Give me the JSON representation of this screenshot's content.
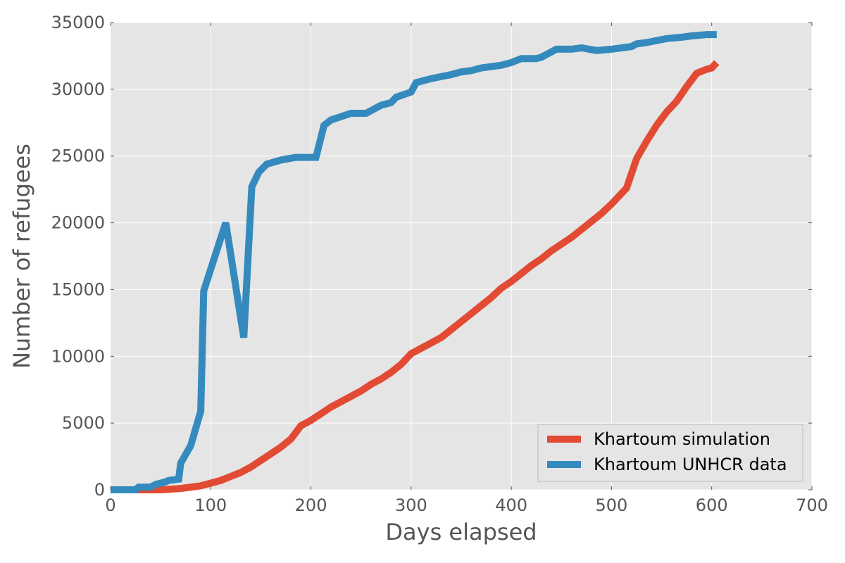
{
  "chart_data": {
    "type": "line",
    "title": "",
    "xlabel": "Days elapsed",
    "ylabel": "Number of refugees",
    "xlim": [
      0,
      700
    ],
    "ylim": [
      0,
      35000
    ],
    "xticks": [
      0,
      100,
      200,
      300,
      400,
      500,
      600,
      700
    ],
    "yticks": [
      0,
      5000,
      10000,
      15000,
      20000,
      25000,
      30000,
      35000
    ],
    "grid": true,
    "legend_position": "lower-right",
    "background_color": "#e5e5e5",
    "grid_color": "#ffffff",
    "series": [
      {
        "name": "Khartoum simulation",
        "color": "#e24a33",
        "x": [
          0,
          50,
          70,
          90,
          100,
          110,
          120,
          130,
          140,
          150,
          160,
          170,
          180,
          190,
          200,
          210,
          220,
          230,
          240,
          250,
          260,
          270,
          280,
          290,
          300,
          310,
          320,
          330,
          340,
          350,
          360,
          370,
          380,
          390,
          400,
          410,
          420,
          430,
          440,
          450,
          460,
          470,
          480,
          490,
          500,
          510,
          515,
          525,
          535,
          545,
          555,
          565,
          575,
          585,
          595,
          600,
          605
        ],
        "y": [
          0,
          0,
          100,
          300,
          500,
          700,
          1000,
          1300,
          1700,
          2200,
          2700,
          3200,
          3800,
          4800,
          5200,
          5700,
          6200,
          6600,
          7000,
          7400,
          7900,
          8300,
          8800,
          9400,
          10200,
          10600,
          11000,
          11400,
          12000,
          12600,
          13200,
          13800,
          14400,
          15100,
          15600,
          16200,
          16800,
          17300,
          17900,
          18400,
          18900,
          19500,
          20100,
          20700,
          21400,
          22200,
          22600,
          24800,
          26100,
          27300,
          28300,
          29100,
          30200,
          31200,
          31500,
          31600,
          32000
        ]
      },
      {
        "name": "Khartoum UNHCR data",
        "color": "#348abd",
        "x": [
          0,
          25,
          28,
          40,
          45,
          55,
          58,
          68,
          70,
          80,
          90,
          93,
          115,
          133,
          141,
          148,
          156,
          170,
          185,
          205,
          213,
          220,
          240,
          255,
          270,
          280,
          285,
          300,
          305,
          320,
          340,
          350,
          360,
          370,
          390,
          400,
          410,
          425,
          430,
          445,
          460,
          470,
          485,
          500,
          520,
          525,
          535,
          555,
          570,
          580,
          595,
          605
        ],
        "y": [
          0,
          0,
          200,
          200,
          400,
          600,
          700,
          800,
          2000,
          3300,
          5900,
          14900,
          20000,
          11400,
          22700,
          23800,
          24400,
          24700,
          24900,
          24900,
          27300,
          27700,
          28200,
          28200,
          28800,
          29000,
          29400,
          29800,
          30500,
          30800,
          31100,
          31300,
          31400,
          31600,
          31800,
          32000,
          32300,
          32300,
          32400,
          33000,
          33000,
          33100,
          32900,
          33000,
          33200,
          33400,
          33500,
          33800,
          33900,
          34000,
          34100,
          34100
        ]
      }
    ]
  }
}
